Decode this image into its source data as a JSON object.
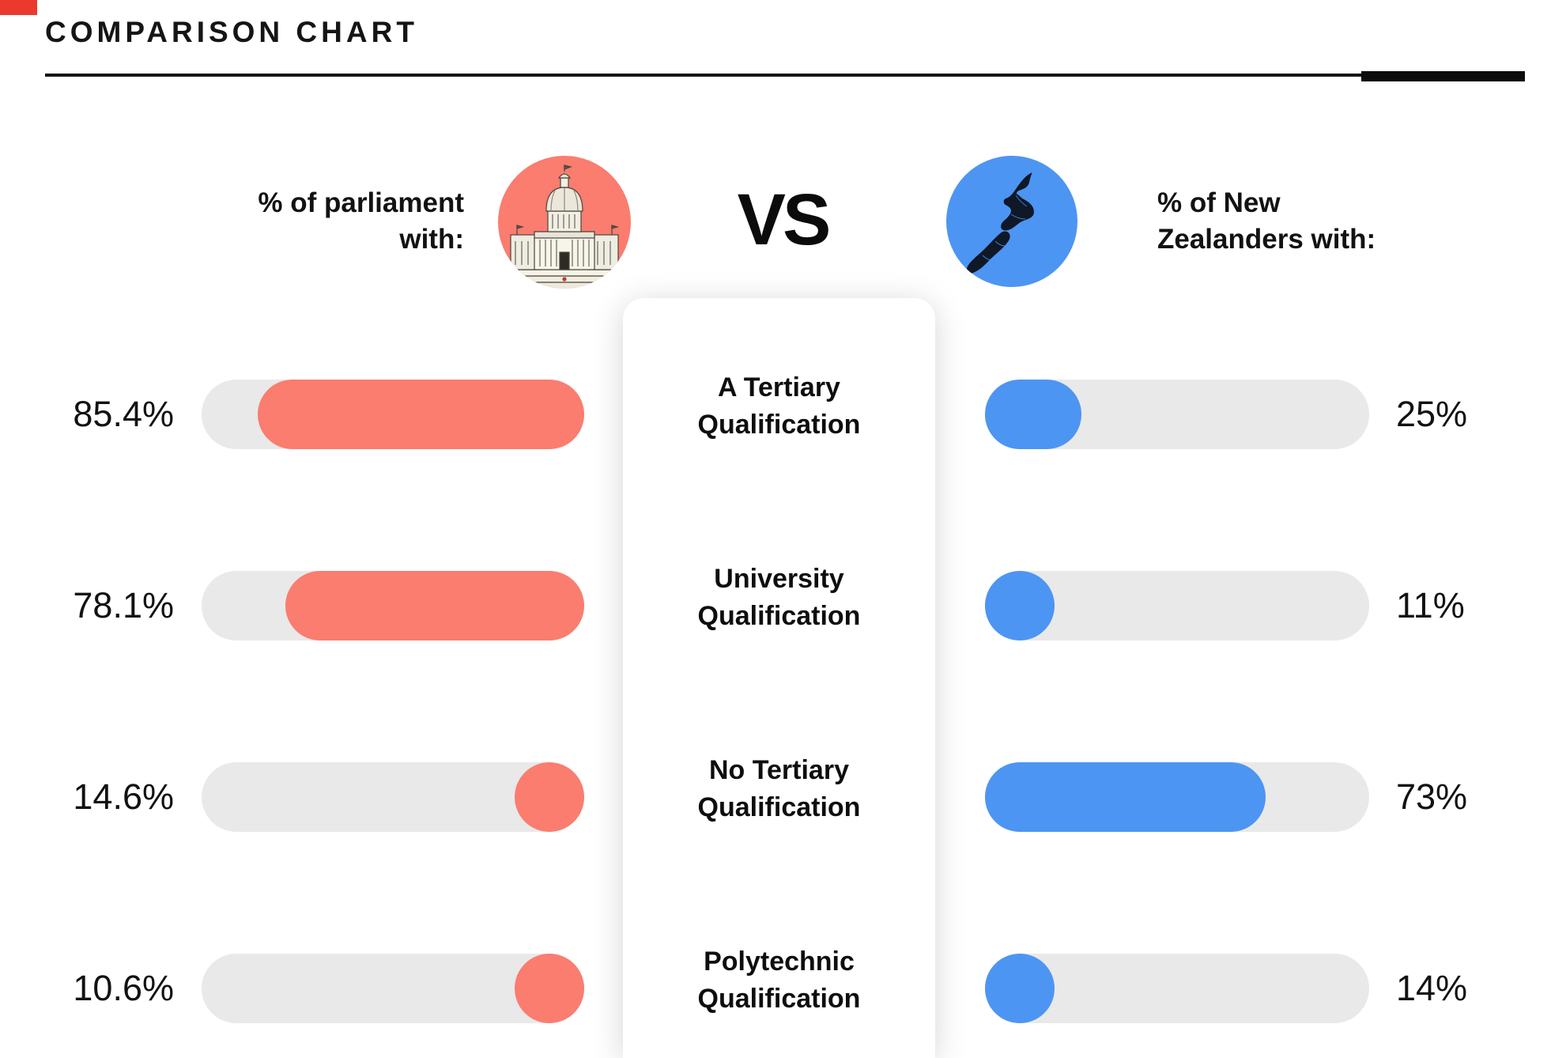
{
  "header": {
    "title": "COMPARISON CHART"
  },
  "left_header": {
    "line1": "% of parliament",
    "line2": "with:",
    "icon": "parliament-building-icon",
    "color": "#FA7D6F"
  },
  "vs_label": "VS",
  "right_header": {
    "line1": "% of New",
    "line2": "Zealanders with:",
    "icon": "new-zealand-map-icon",
    "color": "#4D95F2"
  },
  "colors": {
    "parliament_bar": "#FA7D6F",
    "nz_bar": "#4D95F2",
    "bar_track": "#E9E9E9",
    "corner_mark": "#EA3A2D",
    "text": "#101010"
  },
  "rows": [
    {
      "category_line1": "A Tertiary",
      "category_line2": "Qualification",
      "left_label": "85.4%",
      "left_pct": 85.4,
      "right_label": "25%",
      "right_pct": 25
    },
    {
      "category_line1": "University",
      "category_line2": "Qualification",
      "left_label": "78.1%",
      "left_pct": 78.1,
      "right_label": "11%",
      "right_pct": 11
    },
    {
      "category_line1": "No Tertiary",
      "category_line2": "Qualification",
      "left_label": "14.6%",
      "left_pct": 14.6,
      "right_label": "73%",
      "right_pct": 73
    },
    {
      "category_line1": "Polytechnic",
      "category_line2": "Qualification",
      "left_label": "10.6%",
      "left_pct": 10.6,
      "right_label": "14%",
      "right_pct": 14
    }
  ],
  "chart_data": {
    "type": "bar",
    "title": "COMPARISON CHART",
    "layout": "mirrored-horizontal",
    "categories": [
      "A Tertiary Qualification",
      "University Qualification",
      "No Tertiary Qualification",
      "Polytechnic Qualification"
    ],
    "series": [
      {
        "name": "% of parliament with",
        "values": [
          85.4,
          78.1,
          14.6,
          10.6
        ],
        "labels": [
          "85.4%",
          "78.1%",
          "14.6%",
          "10.6%"
        ],
        "color": "#FA7D6F",
        "anchor": "right"
      },
      {
        "name": "% of New Zealanders with",
        "values": [
          25,
          11,
          73,
          14
        ],
        "labels": [
          "25%",
          "11%",
          "73%",
          "14%"
        ],
        "color": "#4D95F2",
        "anchor": "left"
      }
    ],
    "xlim": [
      0,
      100
    ],
    "grid": false,
    "legend_position": "top-as-header-icons"
  }
}
